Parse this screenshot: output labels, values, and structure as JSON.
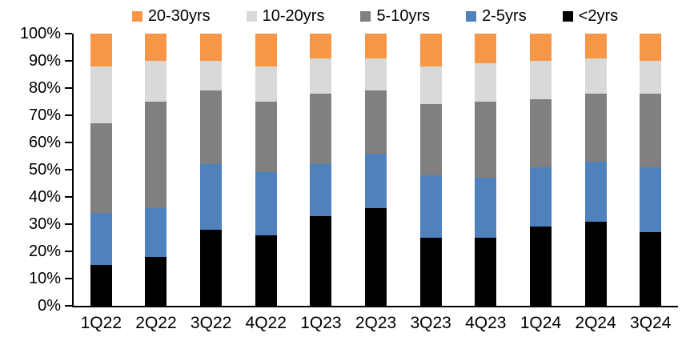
{
  "chart_data": {
    "type": "bar",
    "stacked": true,
    "percent": true,
    "title": "",
    "xlabel": "",
    "ylabel": "",
    "categories": [
      "1Q22",
      "2Q22",
      "3Q22",
      "4Q22",
      "1Q23",
      "2Q23",
      "3Q23",
      "4Q23",
      "1Q24",
      "2Q24",
      "3Q24"
    ],
    "series": [
      {
        "name": "<2yrs",
        "color": "#000000",
        "values": [
          15,
          18,
          28,
          26,
          33,
          36,
          25,
          25,
          29,
          31,
          27
        ]
      },
      {
        "name": "2-5yrs",
        "color": "#4F81BD",
        "values": [
          19,
          18,
          24,
          23,
          19,
          20,
          23,
          22,
          22,
          22,
          24
        ]
      },
      {
        "name": "5-10yrs",
        "color": "#808080",
        "values": [
          33,
          39,
          27,
          26,
          26,
          23,
          26,
          28,
          25,
          25,
          27
        ]
      },
      {
        "name": "10-20yrs",
        "color": "#D9D9D9",
        "values": [
          21,
          15,
          11,
          13,
          13,
          12,
          14,
          14,
          14,
          13,
          12
        ]
      },
      {
        "name": "20-30yrs",
        "color": "#F79646",
        "values": [
          12,
          10,
          10,
          12,
          9,
          9,
          12,
          11,
          10,
          9,
          10
        ]
      }
    ],
    "legend_entries": [
      "20-30yrs",
      "10-20yrs",
      "5-10yrs",
      "2-5yrs",
      "<2yrs"
    ],
    "legend_position": "top",
    "ylim": [
      0,
      100
    ],
    "ytick_step": 10,
    "ytick_labels": [
      "0%",
      "10%",
      "20%",
      "30%",
      "40%",
      "50%",
      "60%",
      "70%",
      "80%",
      "90%",
      "100%"
    ],
    "grid": false,
    "axis_color": "#000000"
  }
}
